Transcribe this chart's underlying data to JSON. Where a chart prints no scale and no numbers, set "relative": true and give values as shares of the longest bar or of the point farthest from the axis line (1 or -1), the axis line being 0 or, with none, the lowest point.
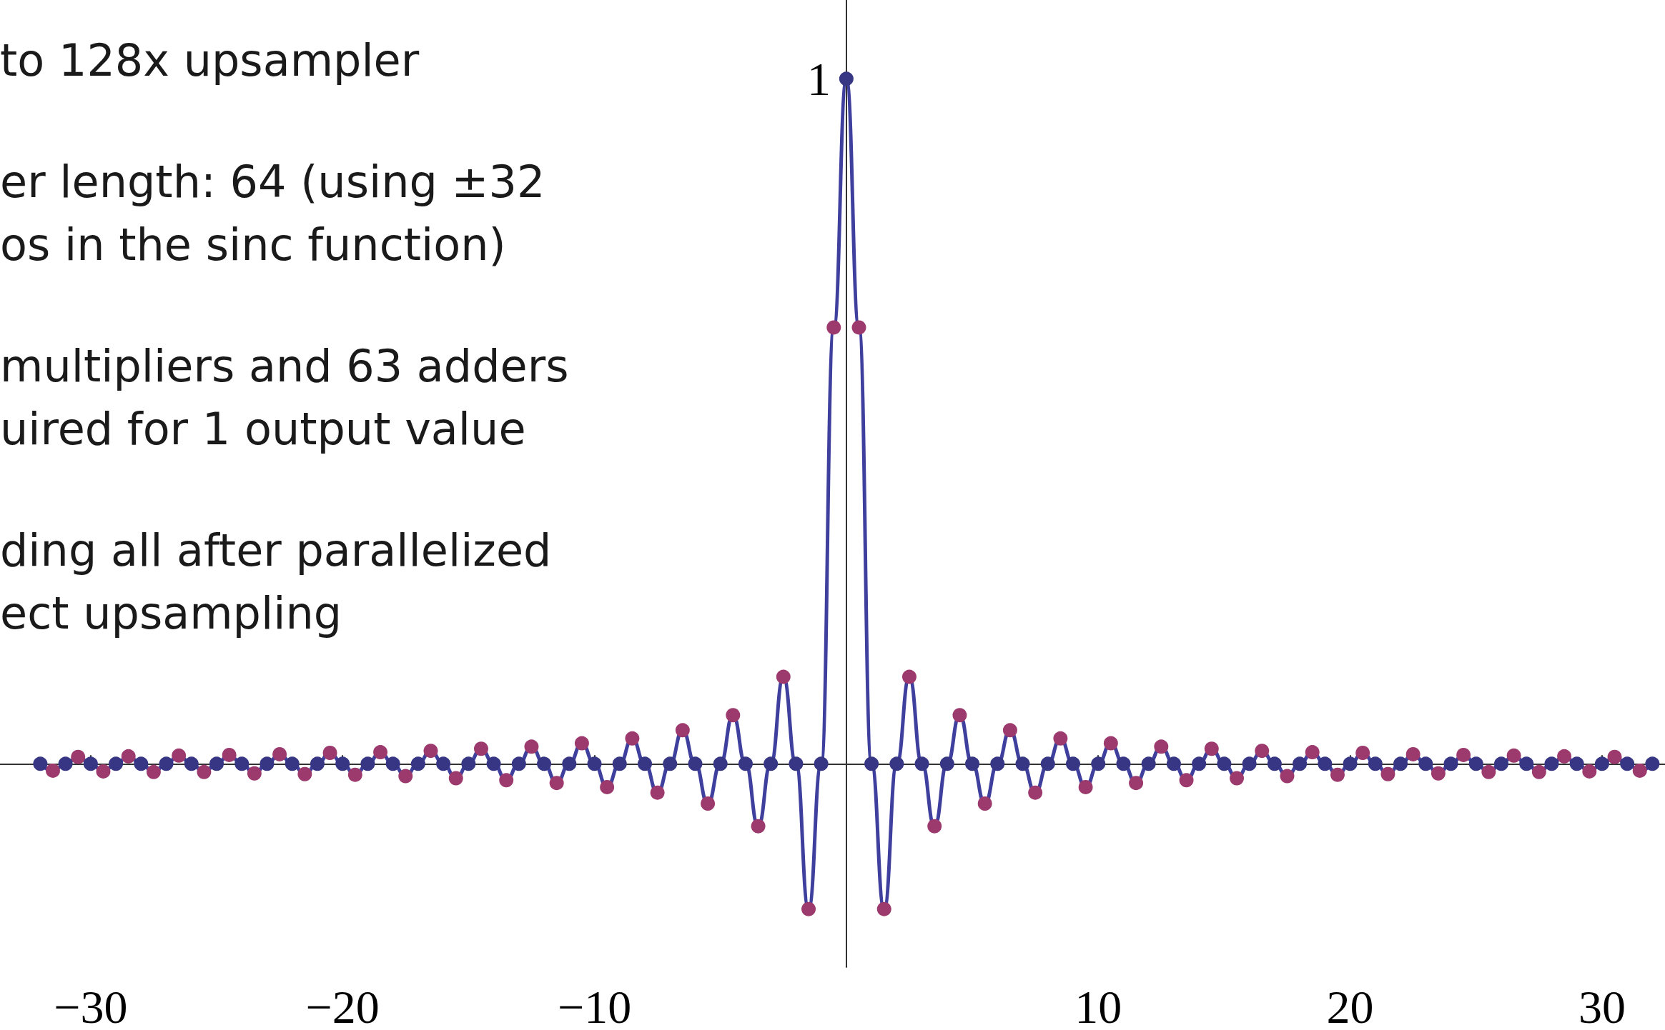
{
  "chart_data": {
    "type": "line",
    "relative": true,
    "grid": false,
    "xlim": [
      -33.6,
      32.5
    ],
    "xticks": [
      {
        "value": -30,
        "label": "−30"
      },
      {
        "value": -20,
        "label": "−20"
      },
      {
        "value": -10,
        "label": "−10"
      },
      10,
      20,
      30
    ],
    "annotations": [
      "to 128x upsampler",
      "er length: 64 (using ±32\nos in the sinc function)",
      "multipliers and 63 adders\nuired for 1 output value",
      "ding all after parallelized\nect upsampling",
      {
        "text": "1",
        "x": 0,
        "y": 1
      }
    ],
    "series": [
      {
        "color": "#3f3f9e",
        "marker": "none",
        "line_style": "solid",
        "x": [
          -32,
          -31.5,
          -31,
          -30.5,
          -30,
          -29.5,
          -29,
          -28.5,
          -28,
          -27.5,
          -27,
          -26.5,
          -26,
          -25.5,
          -25,
          -24.5,
          -24,
          -23.5,
          -23,
          -22.5,
          -22,
          -21.5,
          -21,
          -20.5,
          -20,
          -19.5,
          -19,
          -18.5,
          -18,
          -17.5,
          -17,
          -16.5,
          -16,
          -15.5,
          -15,
          -14.5,
          -14,
          -13.5,
          -13,
          -12.5,
          -12,
          -11.5,
          -11,
          -10.5,
          -10,
          -9.5,
          -9,
          -8.5,
          -8,
          -7.5,
          -7,
          -6.5,
          -6,
          -5.5,
          -5,
          -4.5,
          -4,
          -3.5,
          -3,
          -2.5,
          -2,
          -1.5,
          -1,
          -0.5,
          0,
          0.5,
          1,
          1.5,
          2,
          2.5,
          3,
          3.5,
          4,
          4.5,
          5,
          5.5,
          6,
          6.5,
          7,
          7.5,
          8,
          8.5,
          9,
          9.5,
          10,
          10.5,
          11,
          11.5,
          12,
          12.5,
          13,
          13.5,
          14,
          14.5,
          15,
          15.5,
          16,
          16.5,
          17,
          17.5,
          18,
          18.5,
          19,
          19.5,
          20,
          20.5,
          21,
          21.5,
          22,
          22.5,
          23,
          23.5,
          24,
          24.5,
          25,
          25.5,
          26,
          26.5,
          27,
          27.5,
          28,
          28.5,
          29,
          29.5,
          30,
          30.5,
          31,
          31.5,
          32
        ],
        "values": [
          0,
          -0.01,
          0,
          0.01,
          0,
          -0.011,
          0,
          0.011,
          0,
          -0.012,
          0,
          0.012,
          0,
          -0.012,
          0,
          0.013,
          0,
          -0.014,
          0,
          0.014,
          0,
          -0.015,
          0,
          0.016,
          0,
          -0.016,
          0,
          0.017,
          0,
          -0.018,
          0,
          0.019,
          0,
          -0.021,
          0,
          0.022,
          0,
          -0.024,
          0,
          0.025,
          0,
          -0.028,
          0,
          0.03,
          0,
          -0.034,
          0,
          0.037,
          0,
          -0.042,
          0,
          0.049,
          0,
          -0.058,
          0,
          0.071,
          0,
          -0.091,
          0,
          0.127,
          0,
          -0.212,
          0,
          0.637,
          1,
          0.637,
          0,
          -0.212,
          0,
          0.127,
          0,
          -0.091,
          0,
          0.071,
          0,
          -0.058,
          0,
          0.049,
          0,
          -0.042,
          0,
          0.037,
          0,
          -0.034,
          0,
          0.03,
          0,
          -0.028,
          0,
          0.025,
          0,
          -0.024,
          0,
          0.022,
          0,
          -0.021,
          0,
          0.019,
          0,
          -0.018,
          0,
          0.017,
          0,
          -0.016,
          0,
          0.016,
          0,
          -0.015,
          0,
          0.014,
          0,
          -0.014,
          0,
          0.013,
          0,
          -0.012,
          0,
          0.012,
          0,
          -0.012,
          0,
          0.011,
          0,
          -0.011,
          0,
          0.01,
          0,
          -0.01,
          0
        ]
      },
      {
        "type": "scatter",
        "color": "#363684",
        "marker": "circle",
        "x": [
          -32,
          -31,
          -30,
          -29,
          -28,
          -27,
          -26,
          -25,
          -24,
          -23,
          -22,
          -21,
          -20,
          -19,
          -18,
          -17,
          -16,
          -15,
          -14,
          -13,
          -12,
          -11,
          -10,
          -9,
          -8,
          -7,
          -6,
          -5,
          -4,
          -3,
          -2,
          -1,
          0,
          1,
          2,
          3,
          4,
          5,
          6,
          7,
          8,
          9,
          10,
          11,
          12,
          13,
          14,
          15,
          16,
          17,
          18,
          19,
          20,
          21,
          22,
          23,
          24,
          25,
          26,
          27,
          28,
          29,
          30,
          31,
          32
        ],
        "values": [
          0,
          0,
          0,
          0,
          0,
          0,
          0,
          0,
          0,
          0,
          0,
          0,
          0,
          0,
          0,
          0,
          0,
          0,
          0,
          0,
          0,
          0,
          0,
          0,
          0,
          0,
          0,
          0,
          0,
          0,
          0,
          0,
          1,
          0,
          0,
          0,
          0,
          0,
          0,
          0,
          0,
          0,
          0,
          0,
          0,
          0,
          0,
          0,
          0,
          0,
          0,
          0,
          0,
          0,
          0,
          0,
          0,
          0,
          0,
          0,
          0,
          0,
          0,
          0,
          0
        ]
      },
      {
        "type": "scatter",
        "color": "#9c3a6e",
        "marker": "circle",
        "x": [
          -31.5,
          -30.5,
          -29.5,
          -28.5,
          -27.5,
          -26.5,
          -25.5,
          -24.5,
          -23.5,
          -22.5,
          -21.5,
          -20.5,
          -19.5,
          -18.5,
          -17.5,
          -16.5,
          -15.5,
          -14.5,
          -13.5,
          -12.5,
          -11.5,
          -10.5,
          -9.5,
          -8.5,
          -7.5,
          -6.5,
          -5.5,
          -4.5,
          -3.5,
          -2.5,
          -1.5,
          -0.5,
          0.5,
          1.5,
          2.5,
          3.5,
          4.5,
          5.5,
          6.5,
          7.5,
          8.5,
          9.5,
          10.5,
          11.5,
          12.5,
          13.5,
          14.5,
          15.5,
          16.5,
          17.5,
          18.5,
          19.5,
          20.5,
          21.5,
          22.5,
          23.5,
          24.5,
          25.5,
          26.5,
          27.5,
          28.5,
          29.5,
          30.5,
          31.5
        ],
        "values": [
          -0.01,
          0.01,
          -0.011,
          0.011,
          -0.012,
          0.012,
          -0.012,
          0.013,
          -0.014,
          0.014,
          -0.015,
          0.016,
          -0.016,
          0.017,
          -0.018,
          0.019,
          -0.021,
          0.022,
          -0.024,
          0.025,
          -0.028,
          0.03,
          -0.034,
          0.037,
          -0.042,
          0.049,
          -0.058,
          0.071,
          -0.091,
          0.127,
          -0.212,
          0.637,
          0.637,
          -0.212,
          0.127,
          -0.091,
          0.071,
          -0.058,
          0.049,
          -0.042,
          0.037,
          -0.034,
          0.03,
          -0.028,
          0.025,
          -0.024,
          0.022,
          -0.021,
          0.019,
          -0.018,
          0.017,
          -0.016,
          0.016,
          -0.015,
          0.014,
          -0.014,
          0.013,
          -0.012,
          0.012,
          -0.012,
          0.011,
          -0.011,
          0.01,
          -0.01
        ]
      }
    ]
  }
}
